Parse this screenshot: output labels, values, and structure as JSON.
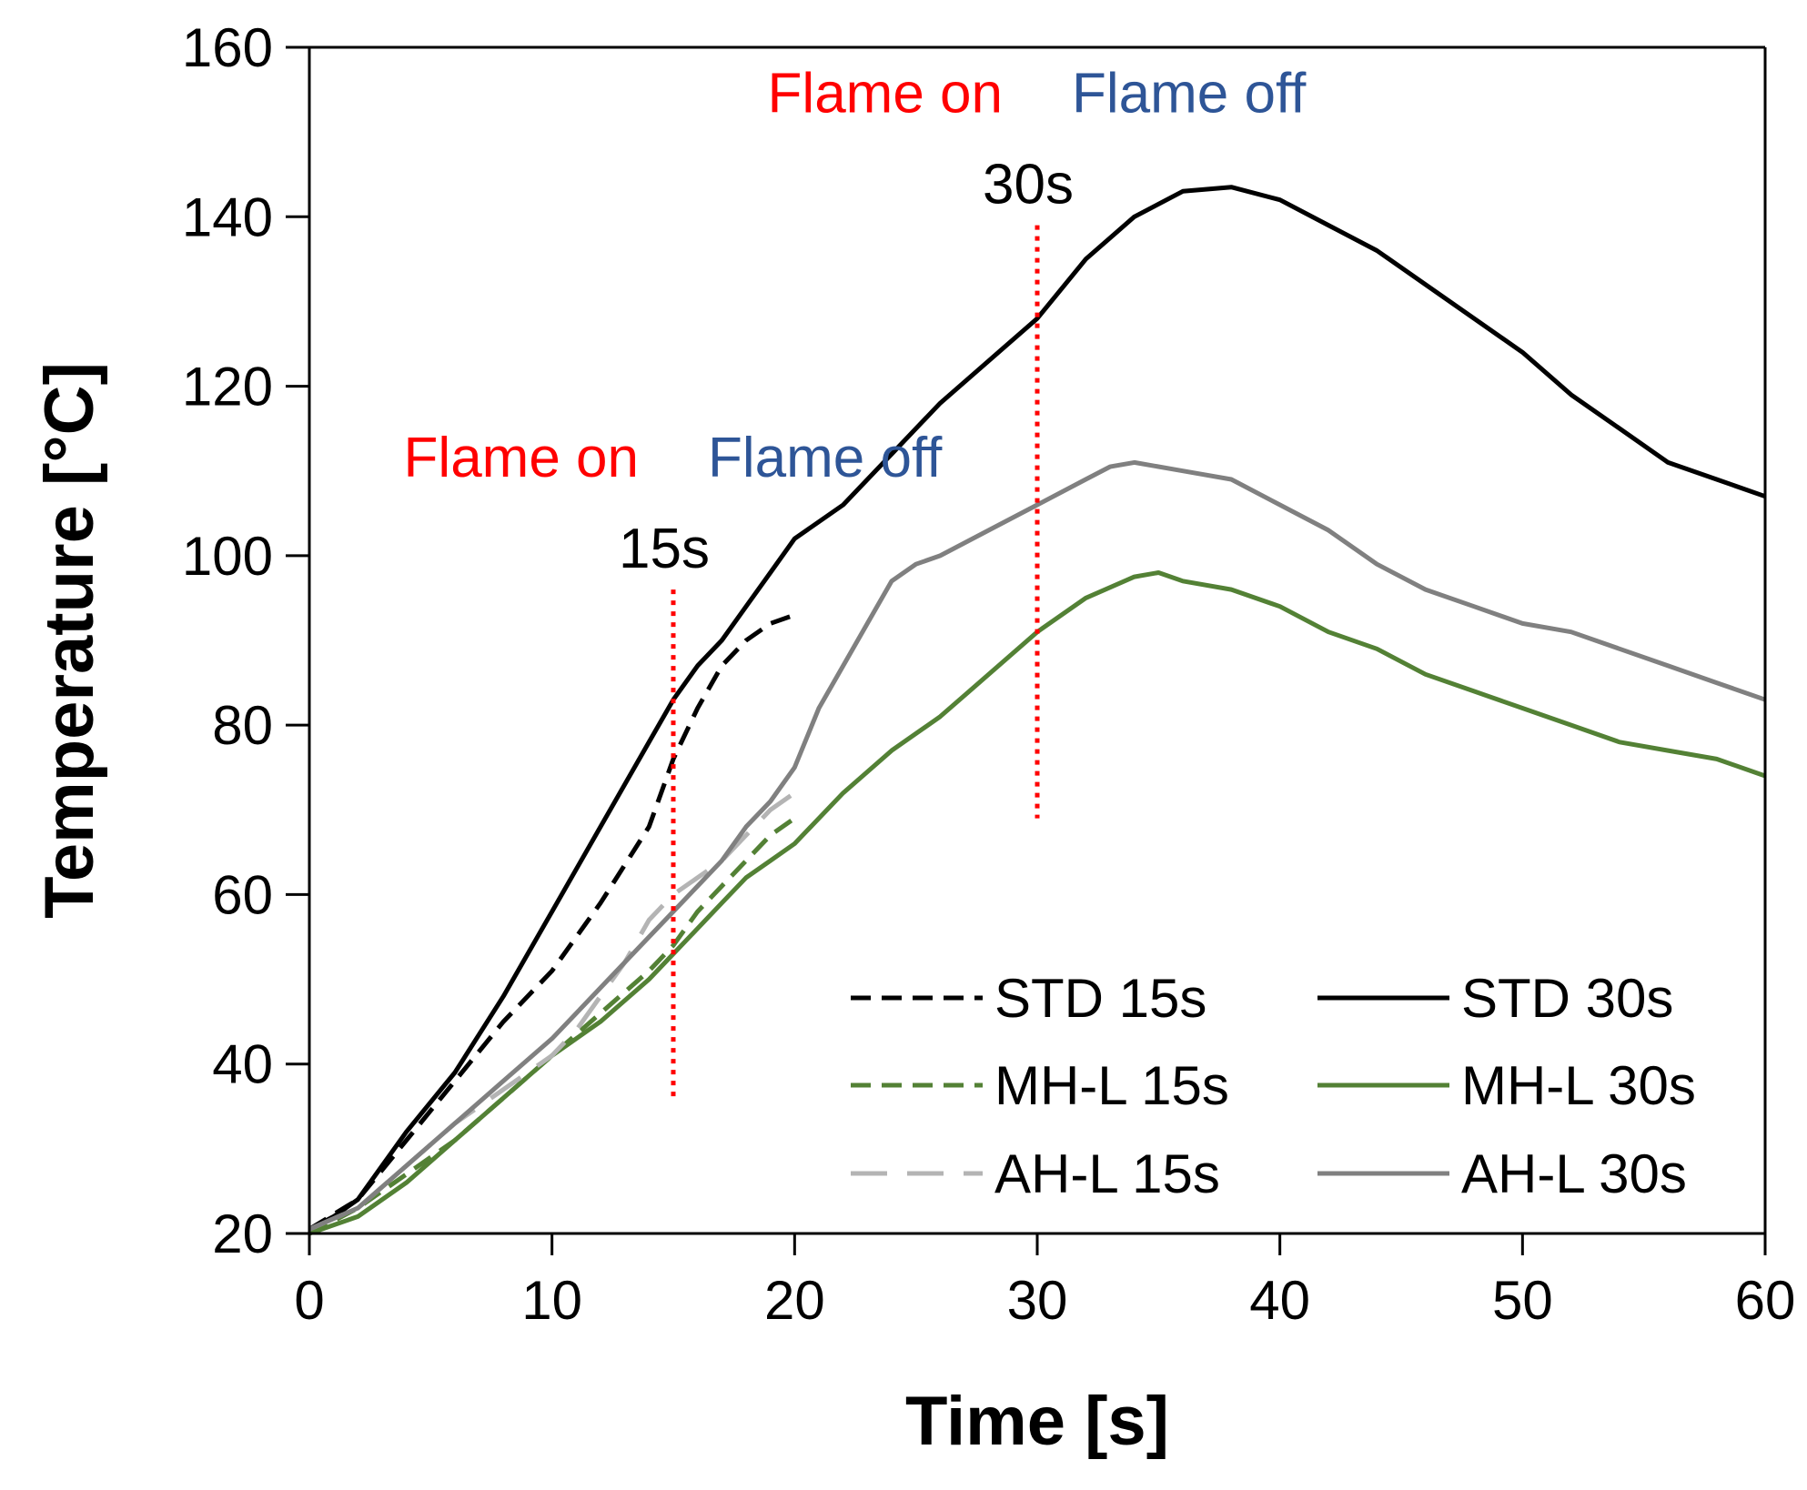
{
  "chart_data": {
    "type": "line",
    "title": "",
    "xlabel": "Time [s]",
    "ylabel": "Temperature [°C]",
    "xlim": [
      0,
      60
    ],
    "ylim": [
      20,
      160
    ],
    "x_ticks": [
      0,
      10,
      20,
      30,
      40,
      50,
      60
    ],
    "y_ticks": [
      20,
      40,
      60,
      80,
      100,
      120,
      140,
      160
    ],
    "grid": false,
    "legend_position": "bottom-right",
    "colors": {
      "black": "#000000",
      "green": "#538135",
      "light_gray": "#b4b4b4",
      "gray": "#808080",
      "red": "#ff0000",
      "blue": "#2e5597"
    },
    "series": [
      {
        "name": "STD 15s",
        "style": "dashed",
        "color": "#000000",
        "x": [
          0,
          2,
          4,
          6,
          8,
          10,
          12,
          14,
          15,
          16,
          17,
          18,
          19,
          20
        ],
        "y": [
          20.5,
          24,
          31,
          38,
          45,
          51,
          59,
          68,
          76,
          82,
          87,
          90,
          92,
          93
        ]
      },
      {
        "name": "STD 30s",
        "style": "solid",
        "color": "#000000",
        "x": [
          0,
          1,
          2,
          3,
          4,
          6,
          8,
          10,
          12,
          14,
          15,
          16,
          17,
          18,
          19,
          20,
          22,
          24,
          26,
          28,
          30,
          32,
          34,
          36,
          38,
          40,
          42,
          44,
          46,
          48,
          50,
          52,
          54,
          56,
          58,
          60
        ],
        "y": [
          20.5,
          22,
          24,
          28,
          32,
          39,
          48,
          58,
          68,
          78,
          83,
          87,
          90,
          94,
          98,
          102,
          106,
          112,
          118,
          123,
          128,
          135,
          140,
          143,
          143.5,
          142,
          139,
          136,
          132,
          128,
          124,
          119,
          115,
          111,
          109,
          107
        ]
      },
      {
        "name": "MH-L 15s",
        "style": "dashed",
        "color": "#538135",
        "x": [
          0,
          2,
          4,
          6,
          8,
          10,
          12,
          14,
          15,
          16,
          17,
          18,
          19,
          20
        ],
        "y": [
          20,
          23,
          27,
          31,
          36,
          41,
          46,
          51,
          54,
          58,
          61,
          64,
          67,
          69
        ]
      },
      {
        "name": "MH-L 30s",
        "style": "solid",
        "color": "#538135",
        "x": [
          0,
          2,
          4,
          6,
          8,
          10,
          12,
          14,
          15,
          16,
          17,
          18,
          19,
          20,
          22,
          24,
          26,
          28,
          30,
          32,
          34,
          35,
          36,
          38,
          40,
          42,
          44,
          46,
          48,
          50,
          52,
          54,
          56,
          58,
          60
        ],
        "y": [
          20,
          22,
          26,
          31,
          36,
          41,
          45,
          50,
          53,
          56,
          59,
          62,
          64,
          66,
          72,
          77,
          81,
          86,
          91,
          95,
          97.5,
          98,
          97,
          96,
          94,
          91,
          89,
          86,
          84,
          82,
          80,
          78,
          77,
          76,
          74
        ]
      },
      {
        "name": "AH-L 15s",
        "style": "long-dashed",
        "color": "#b4b4b4",
        "x": [
          0,
          2,
          4,
          6,
          8,
          10,
          11,
          12,
          13,
          14,
          15,
          16,
          17,
          18,
          19,
          20
        ],
        "y": [
          20.5,
          23,
          28,
          33,
          37,
          41,
          44,
          48,
          52,
          57,
          60,
          62,
          64,
          67,
          70,
          72
        ]
      },
      {
        "name": "AH-L 30s",
        "style": "solid",
        "color": "#808080",
        "x": [
          0,
          2,
          4,
          6,
          8,
          10,
          12,
          14,
          15,
          16,
          17,
          18,
          19,
          20,
          21,
          22,
          23,
          24,
          25,
          26,
          28,
          30,
          32,
          33,
          34,
          36,
          38,
          40,
          42,
          44,
          46,
          48,
          50,
          52,
          54,
          56,
          58,
          60
        ],
        "y": [
          20.5,
          23,
          28,
          33,
          38,
          43,
          49,
          55,
          58,
          61,
          64,
          68,
          71,
          75,
          82,
          87,
          92,
          97,
          99,
          100,
          103,
          106,
          109,
          110.5,
          111,
          110,
          109,
          106,
          103,
          99,
          96,
          94,
          92,
          91,
          89,
          87,
          85,
          83
        ]
      }
    ],
    "markers": [
      {
        "time": 15,
        "y_from": 36,
        "y_to": 96,
        "label": "15s",
        "flame_on": "Flame on",
        "flame_off": "Flame off"
      },
      {
        "time": 30,
        "y_from": 69,
        "y_to": 139,
        "label": "30s",
        "flame_on": "Flame on",
        "flame_off": "Flame off"
      }
    ],
    "legend": [
      {
        "label": "STD 15s",
        "series": 0
      },
      {
        "label": "STD 30s",
        "series": 1
      },
      {
        "label": "MH-L 15s",
        "series": 2
      },
      {
        "label": "MH-L 30s",
        "series": 3
      },
      {
        "label": "AH-L 15s",
        "series": 4
      },
      {
        "label": "AH-L 30s",
        "series": 5
      }
    ]
  }
}
